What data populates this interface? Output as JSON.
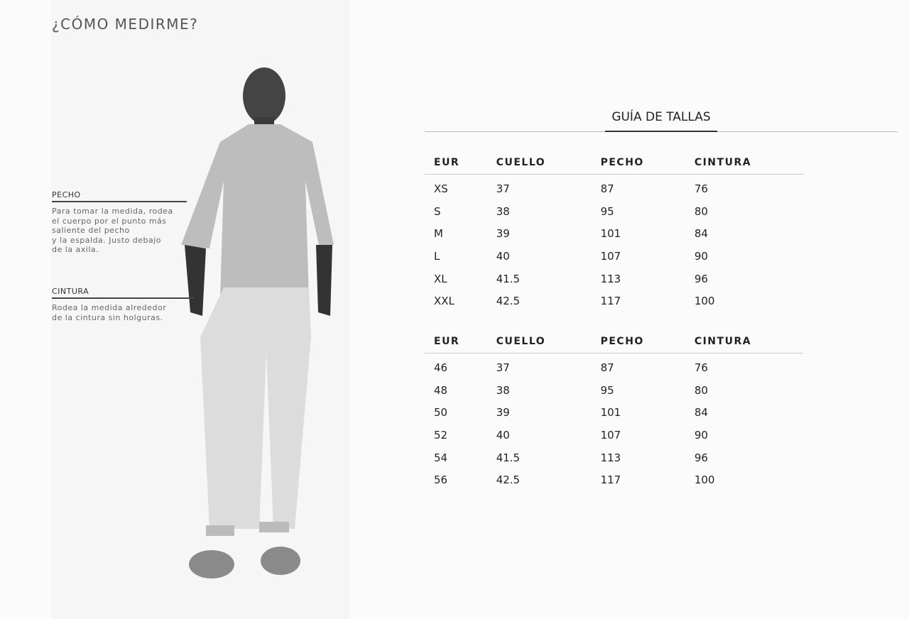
{
  "measure": {
    "title": "¿CÓMO MEDIRME?",
    "chest": {
      "label": "PECHO",
      "description": "Para tomar la medida, rodea\nel cuerpo por el punto más\nsaliente del pecho\ny la espalda. Justo debajo\nde la axila."
    },
    "waist": {
      "label": "CINTURA",
      "description": "Rodea la medida alrededor\nde la cintura sin holguras."
    }
  },
  "size_guide": {
    "tab": "GUÍA DE TALLAS",
    "tables": [
      {
        "headers": [
          "EUR",
          "CUELLO",
          "PECHO",
          "CINTURA"
        ],
        "rows": [
          [
            "XS",
            "37",
            "87",
            "76"
          ],
          [
            "S",
            "38",
            "95",
            "80"
          ],
          [
            "M",
            "39",
            "101",
            "84"
          ],
          [
            "L",
            "40",
            "107",
            "90"
          ],
          [
            "XL",
            "41.5",
            "113",
            "96"
          ],
          [
            "XXL",
            "42.5",
            "117",
            "100"
          ]
        ]
      },
      {
        "headers": [
          "EUR",
          "CUELLO",
          "PECHO",
          "CINTURA"
        ],
        "rows": [
          [
            "46",
            "37",
            "87",
            "76"
          ],
          [
            "48",
            "38",
            "95",
            "80"
          ],
          [
            "50",
            "39",
            "101",
            "84"
          ],
          [
            "52",
            "40",
            "107",
            "90"
          ],
          [
            "54",
            "41.5",
            "113",
            "96"
          ],
          [
            "56",
            "42.5",
            "117",
            "100"
          ]
        ]
      }
    ]
  }
}
